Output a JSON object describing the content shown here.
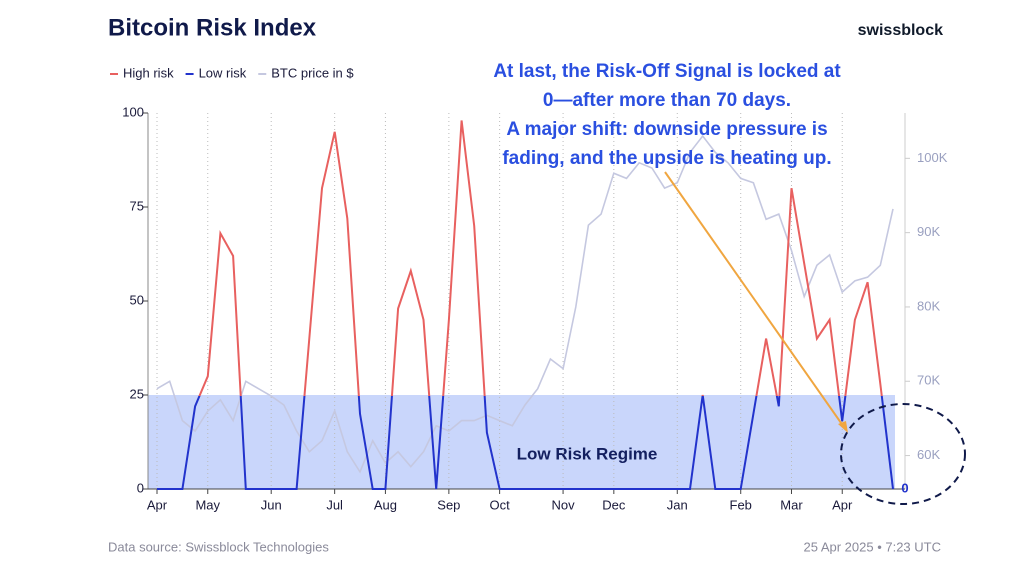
{
  "chart_data": {
    "type": "line",
    "title": "Bitcoin Risk Index",
    "brand": "swissblock",
    "source": "Data source: Swissblock Technologies",
    "timestamp": "25 Apr 2025 • 7:23 UTC",
    "annotation": [
      "At last, the Risk-Off Signal is locked at",
      "0—after more than 70 days.",
      "A major shift: downside pressure is",
      "fading, and the upside is heating up."
    ],
    "categories": [
      "Apr",
      null,
      null,
      null,
      "May",
      null,
      null,
      null,
      null,
      "Jun",
      null,
      null,
      null,
      null,
      "Jul",
      null,
      null,
      null,
      "Aug",
      null,
      null,
      null,
      null,
      "Sep",
      null,
      null,
      null,
      "Oct",
      null,
      null,
      null,
      null,
      "Nov",
      null,
      null,
      null,
      "Dec",
      null,
      null,
      null,
      null,
      "Jan",
      null,
      null,
      null,
      null,
      "Feb",
      null,
      null,
      null,
      "Mar",
      null,
      null,
      null,
      "Apr",
      null,
      null,
      null,
      null
    ],
    "legend": [
      {
        "label": "High risk",
        "color": "#e8605f"
      },
      {
        "label": "Low risk",
        "color": "#2233cc"
      },
      {
        "label": "BTC price in $",
        "color": "#c5c8e0"
      }
    ],
    "risk": {
      "high_color": "#e8605f",
      "low_color": "#2233cc",
      "values": [
        0,
        0,
        0,
        22,
        30,
        68,
        62,
        0,
        0,
        0,
        0,
        0,
        40,
        80,
        95,
        72,
        20,
        0,
        0,
        48,
        58,
        45,
        0,
        45,
        98,
        70,
        15,
        0,
        0,
        0,
        0,
        0,
        0,
        0,
        0,
        0,
        0,
        0,
        0,
        0,
        0,
        0,
        0,
        25,
        0,
        0,
        0,
        20,
        40,
        22,
        80,
        60,
        40,
        45,
        18,
        45,
        55,
        28,
        0
      ]
    },
    "price": {
      "color": "#c5c8e0",
      "axis": "y2",
      "values": [
        69000,
        70000,
        64700,
        63300,
        66000,
        67500,
        64700,
        70000,
        69000,
        68000,
        66800,
        63300,
        60500,
        62000,
        66000,
        60500,
        57800,
        62000,
        59000,
        60500,
        58500,
        60500,
        64000,
        63300,
        64700,
        64700,
        65400,
        64700,
        64000,
        66800,
        69000,
        73000,
        71700,
        80000,
        91000,
        92500,
        98000,
        97300,
        99400,
        98700,
        96000,
        96700,
        100800,
        103000,
        100800,
        99400,
        97300,
        96700,
        91800,
        92500,
        87600,
        81400,
        85600,
        87000,
        82000,
        83500,
        84000,
        85600,
        93200
      ]
    },
    "regime": {
      "label": "Low Risk Regime",
      "upper": 25,
      "color": "#c9d6fb"
    },
    "ylim": [
      0,
      100
    ],
    "yticks": [
      0,
      25,
      50,
      75,
      100
    ],
    "y2lim": [
      55500,
      106100
    ],
    "y2ticks": [
      {
        "value": 60000,
        "label": "60K"
      },
      {
        "value": 70000,
        "label": "70K"
      },
      {
        "value": 80000,
        "label": "80K"
      },
      {
        "value": 90000,
        "label": "90K"
      },
      {
        "value": 100000,
        "label": "100K"
      }
    ],
    "grid": true
  }
}
